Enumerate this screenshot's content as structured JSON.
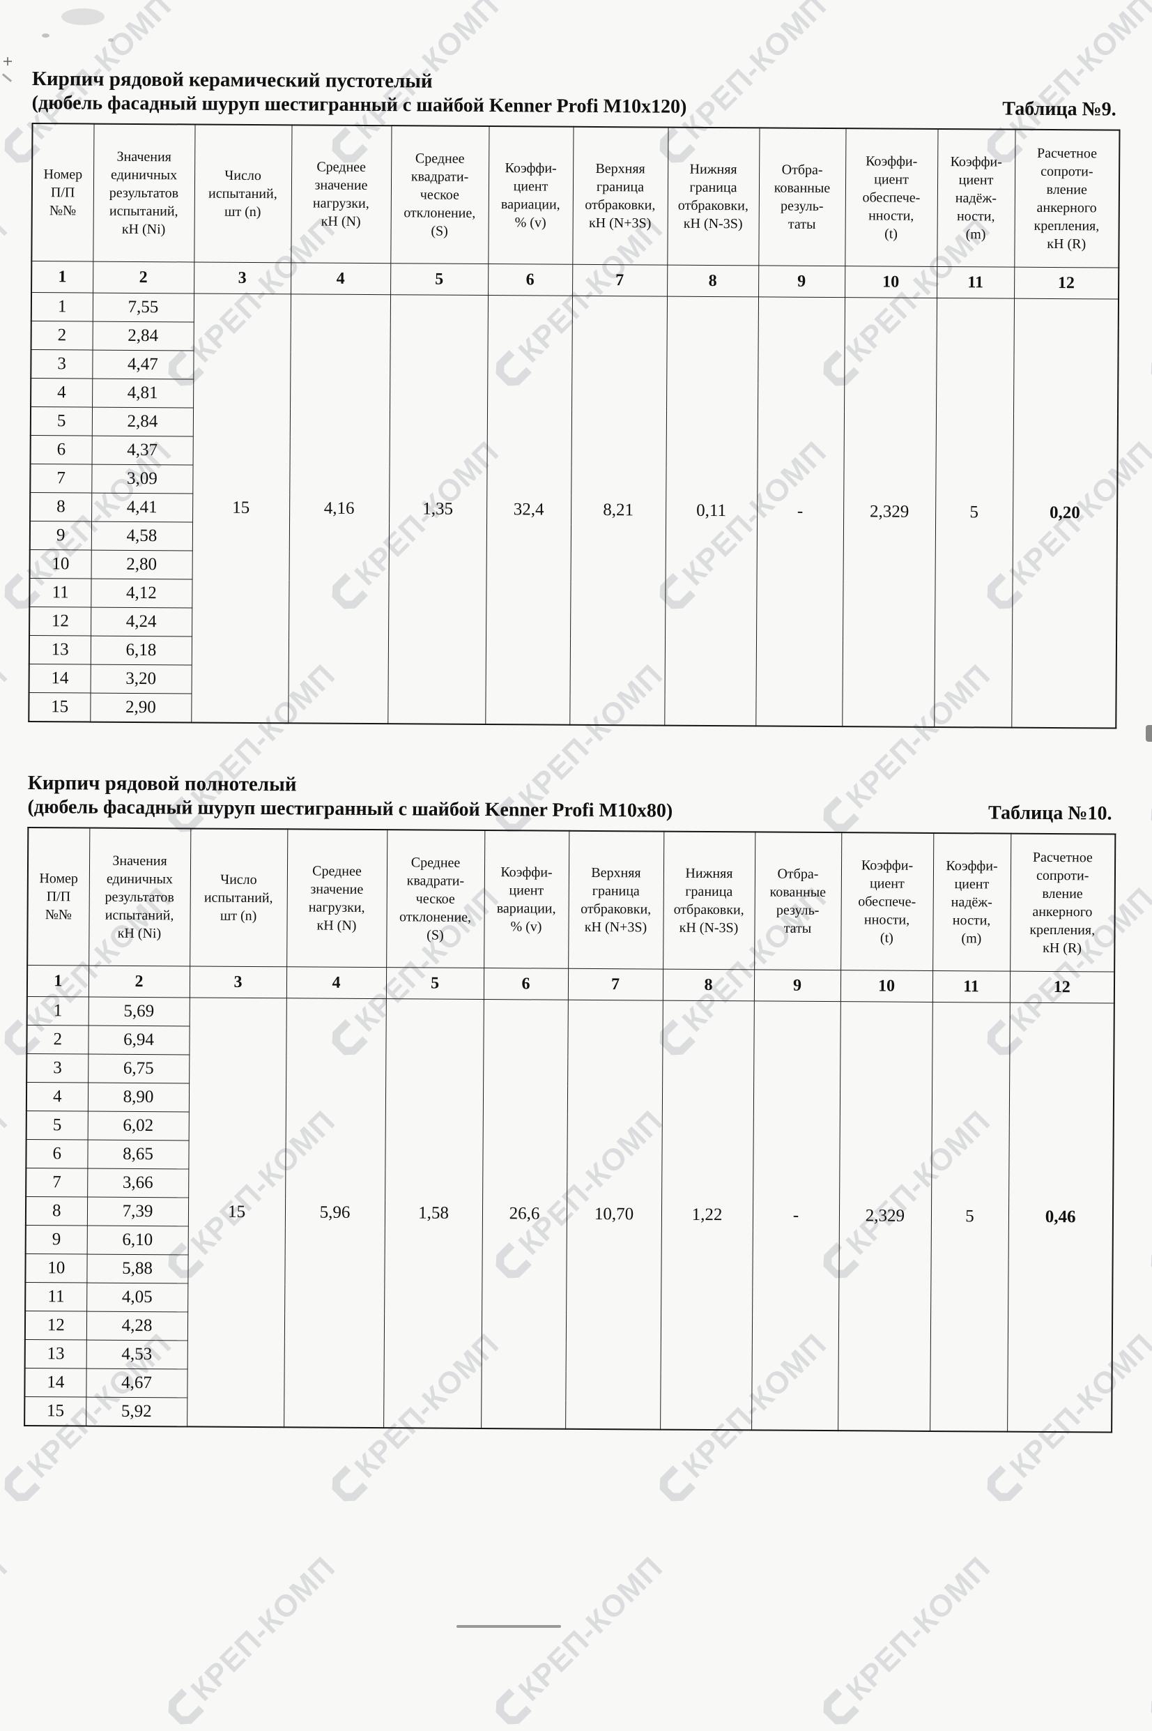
{
  "watermark": {
    "text": "КРЕП-КОМП",
    "color": "#bfc3c6"
  },
  "tables": [
    {
      "title": "Кирпич рядовой керамический пустотелый",
      "subtitle": "(дюбель фасадный шуруп шестигранный с шайбой Kenner Profi M10x120)",
      "label": "Таблица №9.",
      "headers": [
        [
          "Номер",
          "П/П",
          "№№"
        ],
        [
          "Значения",
          "единичных",
          "результатов",
          "испытаний,",
          "кН (Ni)"
        ],
        [
          "Число",
          "испытаний,",
          "шт (n)"
        ],
        [
          "Среднее",
          "значение",
          "нагрузки,",
          "кН (N)"
        ],
        [
          "Среднее",
          "квадрати-",
          "ческое",
          "отклонение,",
          "(S)"
        ],
        [
          "Коэффи-",
          "циент",
          "вариации,",
          "% (v)"
        ],
        [
          "Верхняя",
          "граница",
          "отбраковки,",
          "кН (N+3S)"
        ],
        [
          "Нижняя",
          "граница",
          "отбраковки,",
          "кН (N-3S)"
        ],
        [
          "Отбра-",
          "кованные",
          "резуль-",
          "таты"
        ],
        [
          "Коэффи-",
          "циент",
          "обеспече-",
          "нности,",
          "(t)"
        ],
        [
          "Коэффи-",
          "циент",
          "надёж-",
          "ности,",
          "(m)"
        ],
        [
          "Расчетное",
          "сопроти-",
          "вление",
          "анкерного",
          "крепления,",
          "кН (R)"
        ]
      ],
      "col_numbers": [
        "1",
        "2",
        "3",
        "4",
        "5",
        "6",
        "7",
        "8",
        "9",
        "10",
        "11",
        "12"
      ],
      "row_numbers": [
        "1",
        "2",
        "3",
        "4",
        "5",
        "6",
        "7",
        "8",
        "9",
        "10",
        "11",
        "12",
        "13",
        "14",
        "15"
      ],
      "values": [
        "7,55",
        "2,84",
        "4,47",
        "4,81",
        "2,84",
        "4,37",
        "3,09",
        "4,41",
        "4,58",
        "2,80",
        "4,12",
        "4,24",
        "6,18",
        "3,20",
        "2,90"
      ],
      "stats": [
        "15",
        "4,16",
        "1,35",
        "32,4",
        "8,21",
        "0,11",
        "-",
        "2,329",
        "5",
        "0,20"
      ]
    },
    {
      "title": "Кирпич рядовой полнотелый",
      "subtitle": "(дюбель фасадный шуруп шестигранный с шайбой Kenner Profi M10x80)",
      "label": "Таблица №10.",
      "headers": [
        [
          "Номер",
          "П/П",
          "№№"
        ],
        [
          "Значения",
          "единичных",
          "результатов",
          "испытаний,",
          "кН (Ni)"
        ],
        [
          "Число",
          "испытаний,",
          "шт (n)"
        ],
        [
          "Среднее",
          "значение",
          "нагрузки,",
          "кН (N)"
        ],
        [
          "Среднее",
          "квадрати-",
          "ческое",
          "отклонение,",
          "(S)"
        ],
        [
          "Коэффи-",
          "циент",
          "вариации,",
          "% (v)"
        ],
        [
          "Верхняя",
          "граница",
          "отбраковки,",
          "кН (N+3S)"
        ],
        [
          "Нижняя",
          "граница",
          "отбраковки,",
          "кН (N-3S)"
        ],
        [
          "Отбра-",
          "кованные",
          "резуль-",
          "таты"
        ],
        [
          "Коэффи-",
          "циент",
          "обеспече-",
          "нности,",
          "(t)"
        ],
        [
          "Коэффи-",
          "циент",
          "надёж-",
          "ности,",
          "(m)"
        ],
        [
          "Расчетное",
          "сопроти-",
          "вление",
          "анкерного",
          "крепления,",
          "кН (R)"
        ]
      ],
      "col_numbers": [
        "1",
        "2",
        "3",
        "4",
        "5",
        "6",
        "7",
        "8",
        "9",
        "10",
        "11",
        "12"
      ],
      "row_numbers": [
        "1",
        "2",
        "3",
        "4",
        "5",
        "6",
        "7",
        "8",
        "9",
        "10",
        "11",
        "12",
        "13",
        "14",
        "15"
      ],
      "values": [
        "5,69",
        "6,94",
        "6,75",
        "8,90",
        "6,02",
        "8,65",
        "3,66",
        "7,39",
        "6,10",
        "5,88",
        "4,05",
        "4,28",
        "4,53",
        "4,67",
        "5,92"
      ],
      "stats": [
        "15",
        "5,96",
        "1,58",
        "26,6",
        "10,70",
        "1,22",
        "-",
        "2,329",
        "5",
        "0,46"
      ]
    }
  ]
}
